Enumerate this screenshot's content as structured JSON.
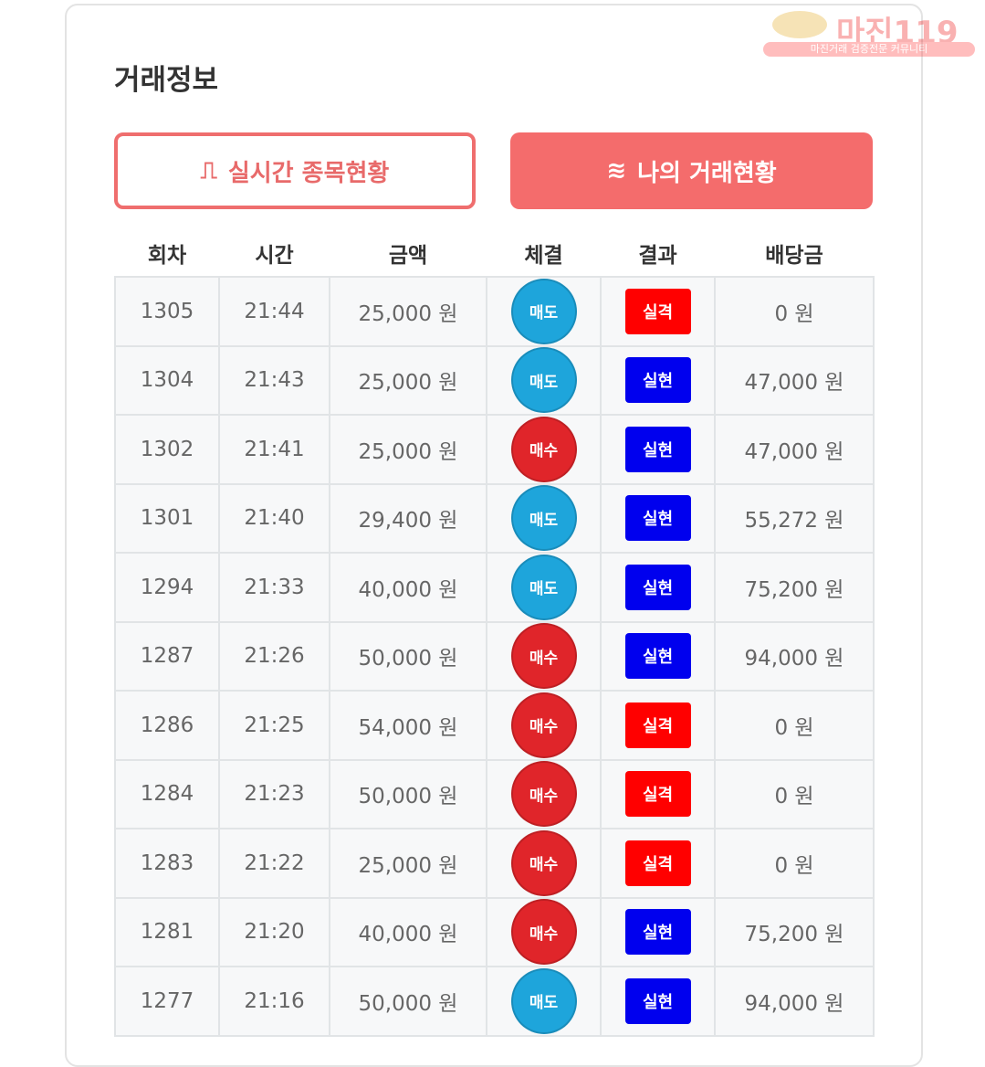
{
  "logo": {
    "name": "마진119",
    "tagline": "마진거래 검증전문 커뮤니티"
  },
  "title": "거래정보",
  "buttons": {
    "realtime": "실시간 종목현황",
    "mine": "나의 거래현황"
  },
  "colors": {
    "sell": "#1ea5db",
    "buy": "#e0252a",
    "fail": "#ff0000",
    "success": "#0000ee",
    "accent": "#f46c6c"
  },
  "headers": [
    "회차",
    "시간",
    "금액",
    "체결",
    "결과",
    "배당금"
  ],
  "rows": [
    [
      "1305",
      "21:44",
      "25,000 원",
      "매도",
      "실격",
      "0 원"
    ],
    [
      "1304",
      "21:43",
      "25,000 원",
      "매도",
      "실현",
      "47,000 원"
    ],
    [
      "1302",
      "21:41",
      "25,000 원",
      "매수",
      "실현",
      "47,000 원"
    ],
    [
      "1301",
      "21:40",
      "29,400 원",
      "매도",
      "실현",
      "55,272 원"
    ],
    [
      "1294",
      "21:33",
      "40,000 원",
      "매도",
      "실현",
      "75,200 원"
    ],
    [
      "1287",
      "21:26",
      "50,000 원",
      "매수",
      "실현",
      "94,000 원"
    ],
    [
      "1286",
      "21:25",
      "54,000 원",
      "매수",
      "실격",
      "0 원"
    ],
    [
      "1284",
      "21:23",
      "50,000 원",
      "매수",
      "실격",
      "0 원"
    ],
    [
      "1283",
      "21:22",
      "25,000 원",
      "매수",
      "실격",
      "0 원"
    ],
    [
      "1281",
      "21:20",
      "40,000 원",
      "매수",
      "실현",
      "75,200 원"
    ],
    [
      "1277",
      "21:16",
      "50,000 원",
      "매도",
      "실현",
      "94,000 원"
    ]
  ]
}
